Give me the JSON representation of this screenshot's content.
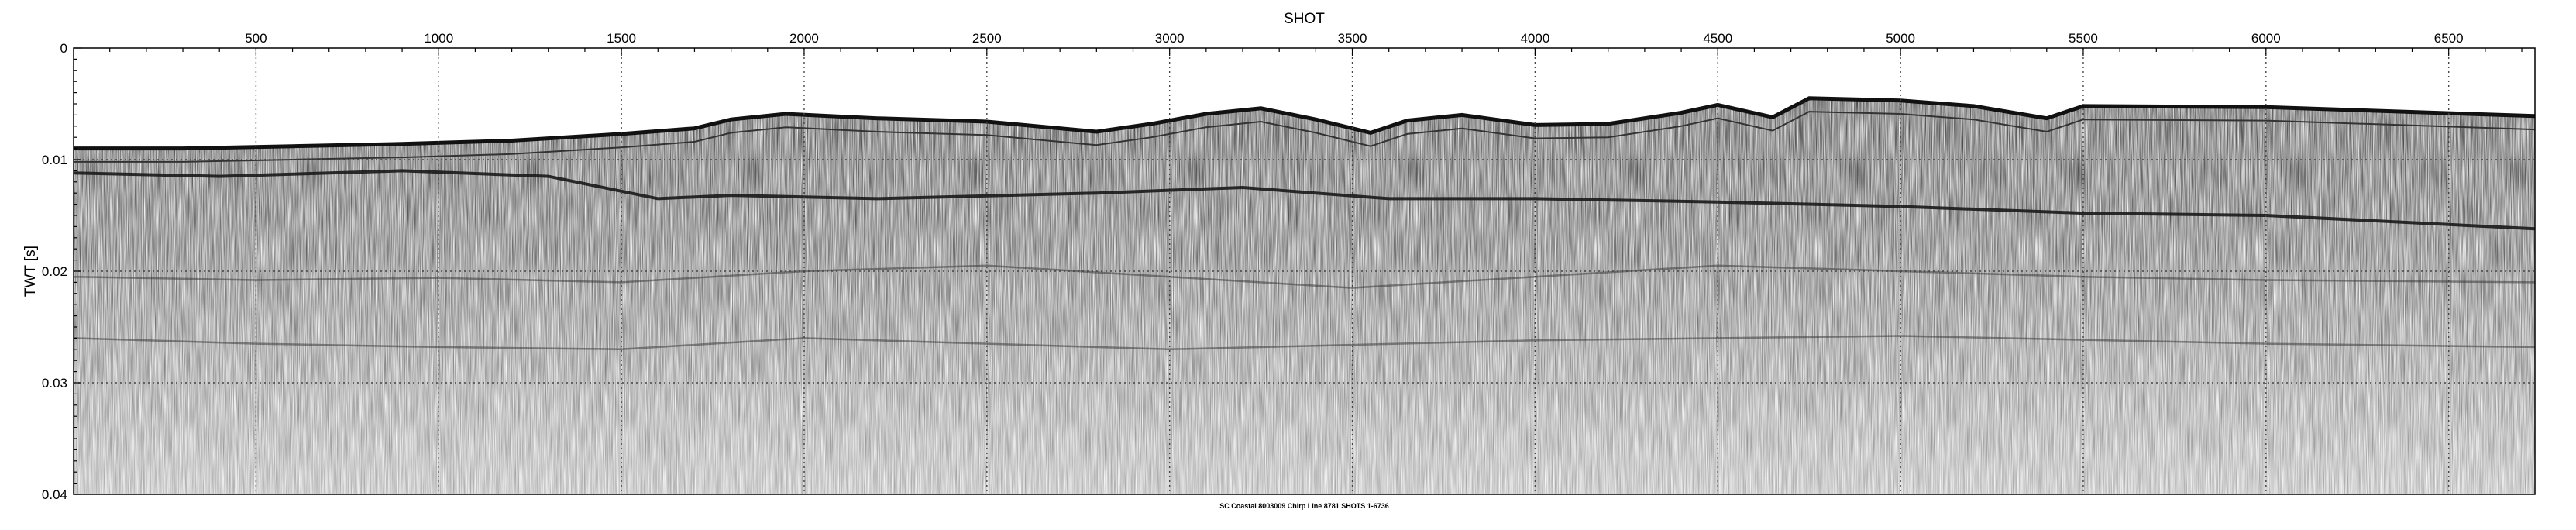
{
  "chart_data": {
    "type": "heatmap",
    "title": "",
    "caption": "SC Coastal 8003009 Chirp Line 8781 SHOTS 1-6736",
    "xlabel": "SHOT",
    "ylabel": "TWT [s]",
    "xlim": [
      1,
      6736
    ],
    "ylim": [
      0.04,
      0
    ],
    "x_ticks": [
      500,
      1000,
      1500,
      2000,
      2500,
      3000,
      3500,
      4000,
      4500,
      5000,
      5500,
      6000,
      6500
    ],
    "x_tick_labels": [
      "500",
      "1000",
      "1500",
      "2000",
      "2500",
      "3000",
      "3500",
      "4000",
      "4500",
      "5000",
      "5500",
      "6000",
      "6500"
    ],
    "y_ticks": [
      0,
      0.01,
      0.02,
      0.03,
      0.04
    ],
    "y_tick_labels": [
      "0",
      "0.01",
      "0.02",
      "0.03",
      "0.04"
    ],
    "grid": true,
    "colormap": "grayscale",
    "seafloor_twt": {
      "shot": [
        1,
        300,
        600,
        900,
        1200,
        1500,
        1700,
        1800,
        1950,
        2200,
        2500,
        2800,
        2950,
        3100,
        3250,
        3400,
        3550,
        3650,
        3800,
        4000,
        4200,
        4400,
        4500,
        4650,
        4750,
        5000,
        5200,
        5400,
        5500,
        6000,
        6736
      ],
      "twt": [
        0.009,
        0.009,
        0.0088,
        0.0086,
        0.0083,
        0.0077,
        0.0072,
        0.0064,
        0.0059,
        0.0063,
        0.0066,
        0.0075,
        0.0068,
        0.0059,
        0.0054,
        0.0064,
        0.0076,
        0.0065,
        0.006,
        0.0069,
        0.0068,
        0.0058,
        0.0051,
        0.0062,
        0.0045,
        0.0047,
        0.0052,
        0.0063,
        0.0052,
        0.0053,
        0.0061
      ]
    },
    "reflectors_twt": [
      {
        "shot": [
          1,
          400,
          900,
          1300,
          1600,
          1800,
          2200,
          2800,
          3200,
          3600,
          4000,
          4500,
          5000,
          5500,
          6000,
          6736
        ],
        "twt": [
          0.0112,
          0.0115,
          0.011,
          0.0115,
          0.0135,
          0.0132,
          0.0135,
          0.013,
          0.0125,
          0.0135,
          0.0135,
          0.0138,
          0.0142,
          0.0148,
          0.015,
          0.0162
        ]
      },
      {
        "shot": [
          1,
          500,
          1000,
          1500,
          2000,
          2500,
          3000,
          3500,
          4000,
          4500,
          5000,
          5500,
          6000,
          6736
        ],
        "twt": [
          0.0205,
          0.0208,
          0.0206,
          0.021,
          0.02,
          0.0195,
          0.0205,
          0.0215,
          0.0205,
          0.0195,
          0.02,
          0.0205,
          0.0208,
          0.021
        ]
      },
      {
        "shot": [
          1,
          500,
          1000,
          1500,
          2000,
          3000,
          4000,
          5000,
          6000,
          6736
        ],
        "twt": [
          0.026,
          0.0265,
          0.0268,
          0.027,
          0.026,
          0.027,
          0.0262,
          0.0258,
          0.0265,
          0.0268
        ]
      }
    ]
  }
}
